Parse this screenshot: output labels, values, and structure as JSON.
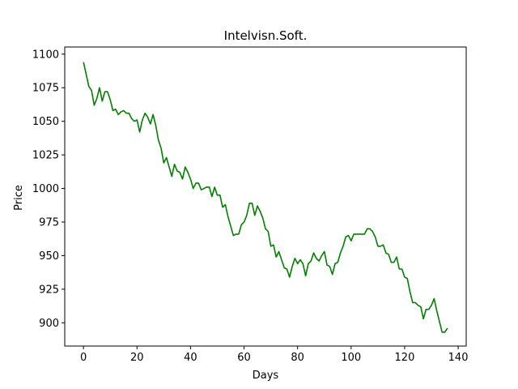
{
  "chart_data": {
    "type": "line",
    "title": "Intelvisn.Soft.",
    "xlabel": "Days",
    "ylabel": "Price",
    "xlim": [
      -7,
      143
    ],
    "ylim": [
      1083,
      883
    ],
    "xticks": [
      0,
      20,
      40,
      60,
      80,
      100,
      120,
      140
    ],
    "yticks": [
      1100,
      1075,
      1050,
      1025,
      1000,
      975,
      950,
      925,
      900
    ],
    "grid": false,
    "series": [
      {
        "color": "#008000",
        "x": [
          0,
          1,
          2,
          3,
          4,
          5,
          6,
          7,
          8,
          9,
          10,
          11,
          12,
          13,
          14,
          15,
          16,
          17,
          18,
          19,
          20,
          21,
          22,
          23,
          24,
          25,
          26,
          27,
          28,
          29,
          30,
          31,
          32,
          33,
          34,
          35,
          36,
          37,
          38,
          39,
          40,
          41,
          42,
          43,
          44,
          45,
          46,
          47,
          48,
          49,
          50,
          51,
          52,
          53,
          54,
          55,
          56,
          57,
          58,
          59,
          60,
          61,
          62,
          63,
          64,
          65,
          66,
          67,
          68,
          69,
          70,
          71,
          72,
          73,
          74,
          75,
          76,
          77,
          78,
          79,
          80,
          81,
          82,
          83,
          84,
          85,
          86,
          87,
          88,
          89,
          90,
          91,
          92,
          93,
          94,
          95,
          96,
          97,
          98,
          99,
          100,
          101,
          102,
          103,
          104,
          105,
          106,
          107,
          108,
          109,
          110,
          111,
          112,
          113,
          114,
          115,
          116,
          117,
          118,
          119,
          120,
          121,
          122,
          123,
          124,
          125,
          126,
          127,
          128,
          129,
          130,
          131,
          132,
          133,
          134,
          135,
          136
        ],
        "values": [
          1094,
          1085,
          1076,
          1073,
          1062,
          1067,
          1075,
          1065,
          1072,
          1072,
          1066,
          1058,
          1059,
          1055,
          1057,
          1058,
          1056,
          1056,
          1052,
          1050,
          1051,
          1042,
          1051,
          1056,
          1053,
          1048,
          1055,
          1047,
          1036,
          1030,
          1019,
          1023,
          1016,
          1009,
          1018,
          1013,
          1012,
          1007,
          1016,
          1012,
          1007,
          1000,
          1004,
          1004,
          999,
          1000,
          1001,
          1001,
          994,
          1001,
          995,
          995,
          986,
          988,
          979,
          972,
          965,
          966,
          966,
          973,
          975,
          980,
          989,
          989,
          980,
          987,
          983,
          978,
          970,
          968,
          957,
          958,
          949,
          953,
          947,
          941,
          940,
          934,
          942,
          948,
          944,
          947,
          944,
          935,
          944,
          946,
          952,
          948,
          946,
          950,
          953,
          943,
          942,
          936,
          944,
          945,
          952,
          957,
          964,
          965,
          961,
          966,
          966,
          966,
          966,
          966,
          970,
          970,
          968,
          964,
          957,
          957,
          958,
          952,
          951,
          945,
          945,
          949,
          940,
          940,
          934,
          933,
          923,
          915,
          915,
          913,
          912,
          903,
          910,
          910,
          913,
          918,
          909,
          901,
          893,
          893,
          896
        ]
      }
    ]
  }
}
